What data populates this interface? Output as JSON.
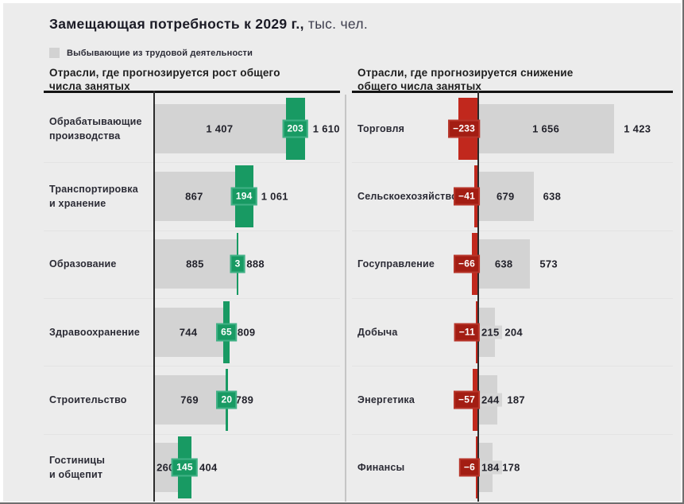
{
  "title": {
    "main": "Замещающая потребность к 2029 г.,",
    "unit": "тыс. чел."
  },
  "legend": {
    "label": "Выбывающие из трудовой деятельности",
    "swatch_color": "#d2d2d2"
  },
  "colors": {
    "background": "#ececec",
    "bar_gray": "#d3d3d3",
    "growth_green": "#189a63",
    "decline_red": "#c1281d",
    "axis": "#2b2b2b"
  },
  "columns": [
    {
      "id": "growth",
      "header": "Отрасли, где прогнозируется рост общего\nчисла занятых",
      "rows": [
        {
          "label": "Обрабатывающие\nпроизводства",
          "base": 1407,
          "delta": 203,
          "total": 1610,
          "base_label": "1 407",
          "delta_label": "203",
          "total_label": "1 610"
        },
        {
          "label": "Транспортировка\nи хранение",
          "base": 867,
          "delta": 194,
          "total": 1061,
          "base_label": "867",
          "delta_label": "194",
          "total_label": "1 061"
        },
        {
          "label": "Образование",
          "base": 885,
          "delta": 3,
          "total": 888,
          "base_label": "885",
          "delta_label": "3",
          "total_label": "888"
        },
        {
          "label": "Здравоохранение",
          "base": 744,
          "delta": 65,
          "total": 809,
          "base_label": "744",
          "delta_label": "65",
          "total_label": "809"
        },
        {
          "label": "Строительство",
          "base": 769,
          "delta": 20,
          "total": 789,
          "base_label": "769",
          "delta_label": "20",
          "total_label": "789"
        },
        {
          "label": "Гостиницы\nи общепит",
          "base": 260,
          "delta": 145,
          "total": 404,
          "base_label": "260",
          "delta_label": "145",
          "total_label": "404"
        }
      ]
    },
    {
      "id": "decline",
      "header": "Отрасли, где прогнозируется снижение\nобщего числа занятых",
      "rows": [
        {
          "label": "Торговля",
          "base": 1656,
          "delta": -233,
          "total": 1423,
          "base_label": "1 656",
          "delta_label": "−233",
          "total_label": "1 423"
        },
        {
          "label": "Сельскоехозяйство",
          "base": 679,
          "delta": -41,
          "total": 638,
          "base_label": "679",
          "delta_label": "−41",
          "total_label": "638"
        },
        {
          "label": "Госуправление",
          "base": 638,
          "delta": -66,
          "total": 573,
          "base_label": "638",
          "delta_label": "−66",
          "total_label": "573"
        },
        {
          "label": "Добыча",
          "base": 215,
          "delta": -11,
          "total": 204,
          "base_label": "215",
          "delta_label": "−11",
          "total_label": "204"
        },
        {
          "label": "Энергетика",
          "base": 244,
          "delta": -57,
          "total": 187,
          "base_label": "244",
          "delta_label": "−57",
          "total_label": "187"
        },
        {
          "label": "Финансы",
          "base": 184,
          "delta": -6,
          "total": 178,
          "base_label": "184",
          "delta_label": "−6",
          "total_label": "178"
        }
      ]
    }
  ],
  "chart_data": [
    {
      "type": "bar",
      "orientation": "horizontal",
      "title": "Отрасли, где прогнозируется рост общего числа занятых",
      "unit": "тыс. чел.",
      "categories": [
        "Обрабатывающие производства",
        "Транспортировка и хранение",
        "Образование",
        "Здравоохранение",
        "Строительство",
        "Гостиницы и общепит"
      ],
      "series": [
        {
          "name": "Выбывающие из трудовой деятельности",
          "color": "#d3d3d3",
          "values": [
            1407,
            867,
            885,
            744,
            769,
            260
          ]
        },
        {
          "name": "change",
          "color": "#189a63",
          "values": [
            203,
            194,
            3,
            65,
            20,
            145
          ]
        }
      ],
      "totals": [
        1610,
        1061,
        888,
        809,
        789,
        404
      ],
      "xlim": [
        0,
        1700
      ],
      "grid": false,
      "legend_position": "top-left"
    },
    {
      "type": "bar",
      "orientation": "horizontal",
      "title": "Отрасли, где прогнозируется снижение общего числа занятых",
      "unit": "тыс. чел.",
      "categories": [
        "Торговля",
        "Сельскоехозяйство",
        "Госуправление",
        "Добыча",
        "Энергетика",
        "Финансы"
      ],
      "series": [
        {
          "name": "Выбывающие из трудовой деятельности",
          "color": "#d3d3d3",
          "values": [
            1656,
            679,
            638,
            215,
            244,
            184
          ]
        },
        {
          "name": "change",
          "color": "#c1281d",
          "values": [
            -233,
            -41,
            -66,
            -11,
            -57,
            -6
          ]
        }
      ],
      "totals": [
        1423,
        638,
        573,
        204,
        187,
        178
      ],
      "xlim": [
        -300,
        1700
      ],
      "grid": false,
      "legend_position": "top-left"
    }
  ]
}
